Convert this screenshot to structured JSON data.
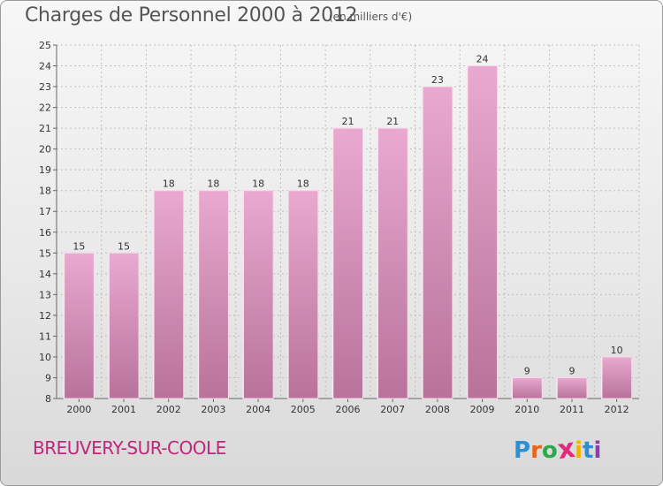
{
  "header": {
    "title": "Charges de Personnel 2000 à 2012",
    "subtitle": "(en milliers d'€)"
  },
  "footer": {
    "commune": "BREUVERY-SUR-COOLE",
    "logo_letters": [
      "P",
      "r",
      "o",
      "x",
      "i",
      "t",
      "i"
    ],
    "logo_colors": [
      "#2e8fd0",
      "#e8641e",
      "#2ea84a",
      "#e4287a",
      "#f0b400",
      "#2e8fd0",
      "#8a3fa6"
    ]
  },
  "colors": {
    "bar_top": "#e9a9d0",
    "bar_bottom": "#b8739a",
    "bar_edge": "#f8d8ec",
    "grid": "#bfbfbf"
  },
  "chart_data": {
    "type": "bar",
    "title": "Charges de Personnel 2000 à 2012",
    "subtitle": "(en milliers d'€)",
    "categories": [
      "2000",
      "2001",
      "2002",
      "2003",
      "2004",
      "2005",
      "2006",
      "2007",
      "2008",
      "2009",
      "2010",
      "2011",
      "2012"
    ],
    "values": [
      15,
      15,
      18,
      18,
      18,
      18,
      21,
      21,
      23,
      24,
      9,
      9,
      10
    ],
    "ylim": [
      8,
      25
    ],
    "yticks": [
      8,
      9,
      10,
      11,
      12,
      13,
      14,
      15,
      16,
      17,
      18,
      19,
      20,
      21,
      22,
      23,
      24,
      25
    ],
    "grid": true
  }
}
